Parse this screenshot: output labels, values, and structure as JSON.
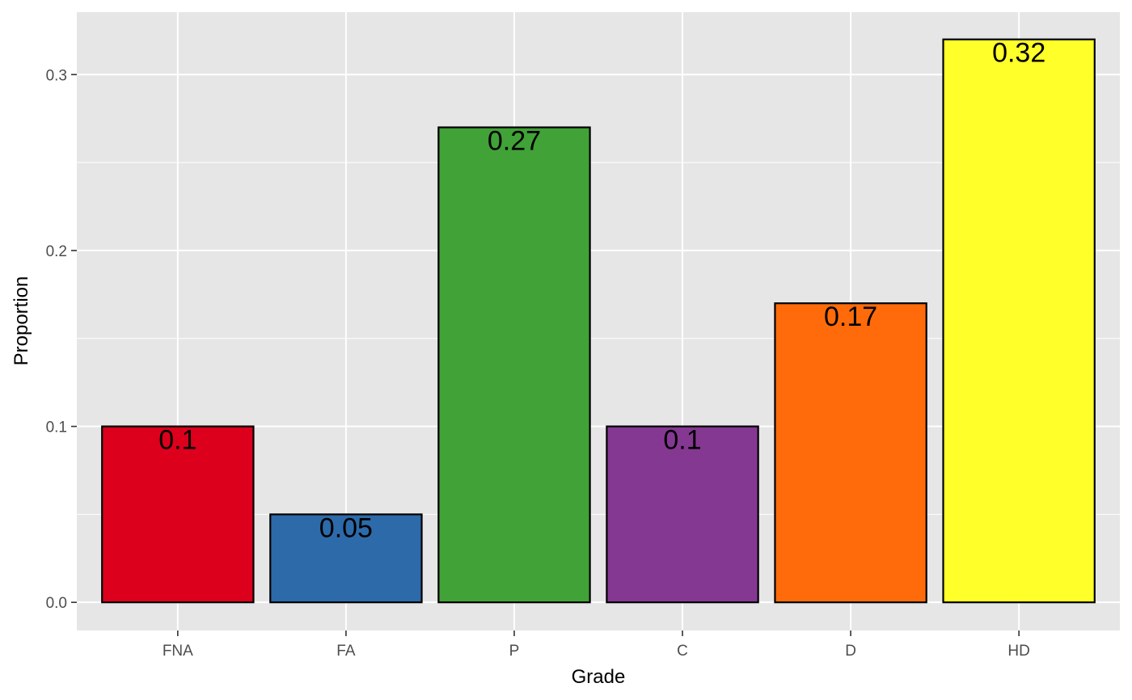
{
  "chart_data": {
    "type": "bar",
    "title": "",
    "xlabel": "Grade",
    "ylabel": "Proportion",
    "categories": [
      "FNA",
      "FA",
      "P",
      "C",
      "D",
      "HD"
    ],
    "values": [
      0.1,
      0.05,
      0.27,
      0.1,
      0.17,
      0.32
    ],
    "data_labels": [
      "0.1",
      "0.05",
      "0.27",
      "0.1",
      "0.17",
      "0.32"
    ],
    "colors": [
      "#DC001C",
      "#2D6AA9",
      "#41A237",
      "#853892",
      "#FF6B0A",
      "#FFFF29"
    ],
    "ylim": [
      -0.016,
      0.3355
    ],
    "yticks": [
      0,
      0.1,
      0.2,
      0.3
    ],
    "ytick_labels": [
      "0.0",
      "0.1",
      "0.2",
      "0.3"
    ],
    "grid": true,
    "legend": "none",
    "panel_background": "#E6E6E6",
    "bar_outline": "#000000"
  }
}
